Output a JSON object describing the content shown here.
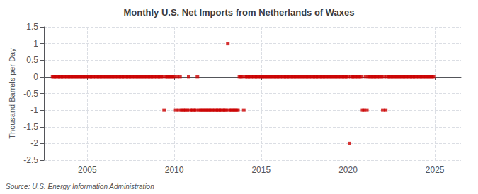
{
  "chart_data": {
    "type": "scatter",
    "title": "Monthly U.S. Net Imports from Netherlands of Waxes",
    "ylabel": "Thousand Barrels per Day",
    "annotation": "Source: U.S. Energy Information Administration",
    "color": "#cc0000",
    "marker": "square",
    "grid": true,
    "xlim": [
      2002.5,
      2026.5
    ],
    "xticks": [
      2005,
      2010,
      2015,
      2020,
      2025
    ],
    "ylim": [
      -2.5,
      1.5
    ],
    "yticks": [
      -2.5,
      -2.0,
      -1.5,
      -1.0,
      -0.5,
      0.0,
      0.5,
      1.0,
      1.5
    ],
    "x": [
      2003.0,
      2003.083,
      2003.167,
      2003.25,
      2003.333,
      2003.417,
      2003.5,
      2003.583,
      2003.667,
      2003.75,
      2003.833,
      2003.917,
      2004.0,
      2004.083,
      2004.167,
      2004.25,
      2004.333,
      2004.417,
      2004.5,
      2004.583,
      2004.667,
      2004.75,
      2004.833,
      2004.917,
      2005.0,
      2005.083,
      2005.167,
      2005.25,
      2005.333,
      2005.417,
      2005.5,
      2005.583,
      2005.667,
      2005.75,
      2005.833,
      2005.917,
      2006.0,
      2006.083,
      2006.167,
      2006.25,
      2006.333,
      2006.417,
      2006.5,
      2006.583,
      2006.667,
      2006.75,
      2006.833,
      2006.917,
      2007.0,
      2007.083,
      2007.167,
      2007.25,
      2007.333,
      2007.417,
      2007.5,
      2007.583,
      2007.667,
      2007.75,
      2007.833,
      2007.917,
      2008.0,
      2008.083,
      2008.167,
      2008.25,
      2008.333,
      2008.417,
      2008.5,
      2008.583,
      2008.667,
      2008.75,
      2008.833,
      2008.917,
      2009.0,
      2009.083,
      2009.167,
      2009.25,
      2009.333,
      2009.417,
      2009.5,
      2009.583,
      2009.667,
      2009.75,
      2009.833,
      2009.917,
      2010.0,
      2010.083,
      2010.167,
      2010.25,
      2010.333,
      2010.417,
      2010.5,
      2010.583,
      2010.667,
      2010.75,
      2010.833,
      2010.917,
      2011.0,
      2011.083,
      2011.167,
      2011.25,
      2011.333,
      2011.417,
      2011.5,
      2011.583,
      2011.667,
      2011.75,
      2011.833,
      2011.917,
      2012.0,
      2012.083,
      2012.167,
      2012.25,
      2012.333,
      2012.417,
      2012.5,
      2012.583,
      2012.667,
      2012.75,
      2012.833,
      2012.917,
      2013.0,
      2013.083,
      2013.167,
      2013.25,
      2013.333,
      2013.417,
      2013.5,
      2013.583,
      2013.667,
      2013.75,
      2013.833,
      2013.917,
      2014.0,
      2014.083,
      2014.167,
      2014.25,
      2014.333,
      2014.417,
      2014.5,
      2014.583,
      2014.667,
      2014.75,
      2014.833,
      2014.917,
      2015.0,
      2015.083,
      2015.167,
      2015.25,
      2015.333,
      2015.417,
      2015.5,
      2015.583,
      2015.667,
      2015.75,
      2015.833,
      2015.917,
      2016.0,
      2016.083,
      2016.167,
      2016.25,
      2016.333,
      2016.417,
      2016.5,
      2016.583,
      2016.667,
      2016.75,
      2016.833,
      2016.917,
      2017.0,
      2017.083,
      2017.167,
      2017.25,
      2017.333,
      2017.417,
      2017.5,
      2017.583,
      2017.667,
      2017.75,
      2017.833,
      2017.917,
      2018.0,
      2018.083,
      2018.167,
      2018.25,
      2018.333,
      2018.417,
      2018.5,
      2018.583,
      2018.667,
      2018.75,
      2018.833,
      2018.917,
      2019.0,
      2019.083,
      2019.167,
      2019.25,
      2019.333,
      2019.417,
      2019.5,
      2019.583,
      2019.667,
      2019.75,
      2019.833,
      2019.917,
      2020.0,
      2020.083,
      2020.167,
      2020.25,
      2020.333,
      2020.417,
      2020.5,
      2020.583,
      2020.667,
      2020.75,
      2020.833,
      2020.917,
      2021.0,
      2021.083,
      2021.167,
      2021.25,
      2021.333,
      2021.417,
      2021.5,
      2021.583,
      2021.667,
      2021.75,
      2021.833,
      2021.917,
      2022.0,
      2022.083,
      2022.167,
      2022.25,
      2022.333,
      2022.417,
      2022.5,
      2022.583,
      2022.667,
      2022.75,
      2022.833,
      2022.917,
      2023.0,
      2023.083,
      2023.167,
      2023.25,
      2023.333,
      2023.417,
      2023.5,
      2023.583,
      2023.667,
      2023.75,
      2023.833,
      2023.917,
      2024.0,
      2024.083,
      2024.167,
      2024.25,
      2024.333,
      2024.417,
      2024.5,
      2024.583,
      2024.667,
      2024.75,
      2024.833,
      2024.917
    ],
    "values": [
      0,
      0,
      0,
      0,
      0,
      0,
      0,
      0,
      0,
      0,
      0,
      0,
      0,
      0,
      0,
      0,
      0,
      0,
      0,
      0,
      0,
      0,
      0,
      0,
      0,
      0,
      0,
      0,
      0,
      0,
      0,
      0,
      0,
      0,
      0,
      0,
      0,
      0,
      0,
      0,
      0,
      0,
      0,
      0,
      0,
      0,
      0,
      0,
      0,
      0,
      0,
      0,
      0,
      0,
      0,
      0,
      0,
      0,
      0,
      0,
      0,
      0,
      0,
      0,
      0,
      0,
      0,
      0,
      0,
      0,
      0,
      0,
      0,
      0,
      0,
      0,
      0,
      -1,
      0,
      0,
      0,
      0,
      0,
      0,
      0,
      -1,
      0,
      -1,
      0,
      -1,
      -1,
      -1,
      -1,
      -1,
      0,
      -1,
      -1,
      -1,
      -1,
      -1,
      0,
      -1,
      -1,
      -1,
      -1,
      -1,
      -1,
      -1,
      -1,
      -1,
      -1,
      -1,
      -1,
      -1,
      -1,
      -1,
      -1,
      -1,
      -1,
      -1,
      -1,
      1,
      -1,
      -1,
      -1,
      -1,
      -1,
      -1,
      -1,
      0,
      0,
      0,
      -1,
      0,
      0,
      0,
      0,
      0,
      0,
      0,
      0,
      0,
      0,
      0,
      0,
      0,
      0,
      0,
      0,
      0,
      0,
      0,
      0,
      0,
      0,
      0,
      0,
      0,
      0,
      0,
      0,
      0,
      0,
      0,
      0,
      0,
      0,
      0,
      0,
      0,
      0,
      0,
      0,
      0,
      0,
      0,
      0,
      0,
      0,
      0,
      0,
      0,
      0,
      0,
      0,
      0,
      0,
      0,
      0,
      0,
      0,
      0,
      0,
      0,
      0,
      0,
      0,
      0,
      0,
      0,
      0,
      0,
      0,
      0,
      0,
      -2,
      0,
      0,
      0,
      0,
      0,
      0,
      0,
      0,
      -1,
      -1,
      0,
      -1,
      0,
      0,
      0,
      0,
      0,
      0,
      0,
      0,
      0,
      0,
      -1,
      0,
      -1,
      0,
      0,
      0,
      0,
      0,
      0,
      0,
      0,
      0,
      0,
      0,
      0,
      0,
      0,
      0,
      0,
      0,
      0,
      0,
      0,
      0,
      0,
      0,
      0,
      0,
      0,
      0,
      0,
      0,
      0,
      0,
      0,
      0
    ]
  }
}
